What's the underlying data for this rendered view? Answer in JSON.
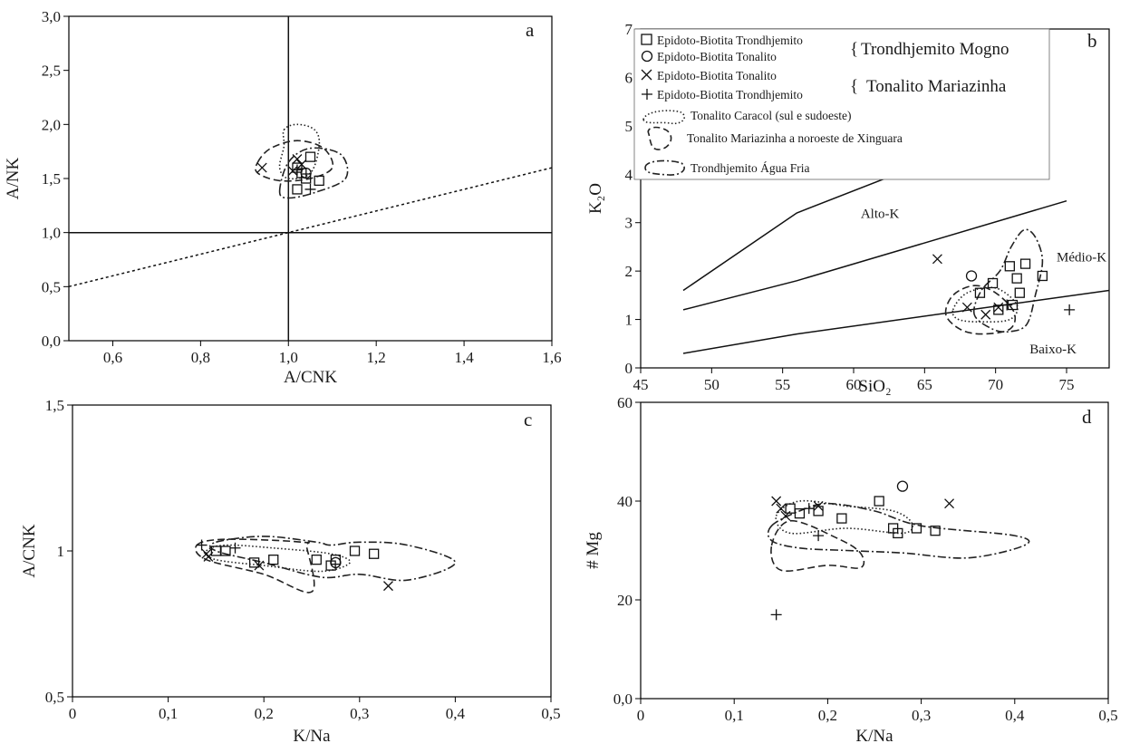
{
  "chart_data": [
    {
      "id": "a",
      "panel_label": "a",
      "type": "scatter",
      "xlabel": "A/CNK",
      "ylabel": "A/NK",
      "xlim": [
        0.5,
        1.6
      ],
      "ylim": [
        0.0,
        3.0
      ],
      "xticks": [
        "0,6",
        "0,8",
        "1,0",
        "1,2",
        "1,4",
        "1,6"
      ],
      "xtick_values": [
        0.6,
        0.8,
        1.0,
        1.2,
        1.4,
        1.6
      ],
      "yticks": [
        "0,0",
        "0,5",
        "1,0",
        "1,5",
        "2,0",
        "2,5",
        "3,0"
      ],
      "ytick_values": [
        0,
        0.5,
        1.0,
        1.5,
        2.0,
        2.5,
        3.0
      ],
      "reference_lines": [
        {
          "style": "solid",
          "points": [
            [
              1.0,
              0
            ],
            [
              1.0,
              3.0
            ]
          ]
        },
        {
          "style": "solid",
          "points": [
            [
              0.5,
              1.0
            ],
            [
              1.6,
              1.0
            ]
          ]
        },
        {
          "style": "dotted",
          "points": [
            [
              0.5,
              0.5
            ],
            [
              1.6,
              1.6
            ]
          ]
        }
      ],
      "series": [
        {
          "name": "Epidoto-Biotita Trondhjemito",
          "marker": "square",
          "points": [
            [
              1.02,
              1.4
            ],
            [
              1.04,
              1.5
            ],
            [
              1.05,
              1.7
            ],
            [
              1.03,
              1.55
            ],
            [
              1.07,
              1.48
            ],
            [
              1.02,
              1.6
            ]
          ]
        },
        {
          "name": "Epidoto-Biotita Tonalito",
          "marker": "circle",
          "points": [
            [
              1.04,
              1.55
            ]
          ]
        },
        {
          "name": "Epidoto-Biotita Tonalito",
          "marker": "x",
          "points": [
            [
              0.94,
              1.6
            ],
            [
              1.02,
              1.68
            ],
            [
              1.03,
              1.63
            ],
            [
              1.01,
              1.57
            ]
          ]
        },
        {
          "name": "Epidoto-Biotita Trondhjemito",
          "marker": "plus",
          "points": [
            [
              1.05,
              1.4
            ],
            [
              1.02,
              1.58
            ]
          ]
        }
      ],
      "fields": [
        {
          "style": "dotted",
          "points": [
            [
              0.99,
              1.95
            ],
            [
              1.02,
              2.0
            ],
            [
              1.06,
              1.95
            ],
            [
              1.07,
              1.8
            ],
            [
              1.05,
              1.55
            ],
            [
              1.0,
              1.5
            ],
            [
              0.98,
              1.6
            ],
            [
              0.99,
              1.8
            ]
          ]
        },
        {
          "style": "dashed",
          "points": [
            [
              0.93,
              1.65
            ],
            [
              0.96,
              1.78
            ],
            [
              1.02,
              1.85
            ],
            [
              1.08,
              1.78
            ],
            [
              1.1,
              1.6
            ],
            [
              1.05,
              1.5
            ],
            [
              0.98,
              1.48
            ],
            [
              0.93,
              1.55
            ]
          ]
        },
        {
          "style": "dashdot",
          "points": [
            [
              0.98,
              1.38
            ],
            [
              1.0,
              1.65
            ],
            [
              1.05,
              1.78
            ],
            [
              1.12,
              1.72
            ],
            [
              1.13,
              1.5
            ],
            [
              1.06,
              1.37
            ],
            [
              1.0,
              1.32
            ]
          ]
        }
      ]
    },
    {
      "id": "b",
      "panel_label": "b",
      "type": "scatter",
      "xlabel": "SiO₂",
      "ylabel": "K₂O",
      "xlim": [
        45,
        78
      ],
      "ylim": [
        0,
        7
      ],
      "xticks": [
        "45",
        "50",
        "55",
        "60",
        "65",
        "70",
        "75"
      ],
      "xtick_values": [
        45,
        50,
        55,
        60,
        65,
        70,
        75
      ],
      "yticks": [
        "0",
        "1",
        "2",
        "3",
        "4",
        "5",
        "6",
        "7"
      ],
      "ytick_values": [
        0,
        1,
        2,
        3,
        4,
        5,
        6,
        7
      ],
      "boundary_lines": [
        [
          [
            48,
            1.6
          ],
          [
            56,
            3.2
          ],
          [
            70,
            4.8
          ]
        ],
        [
          [
            48,
            1.2
          ],
          [
            56,
            1.8
          ],
          [
            75,
            3.45
          ]
        ],
        [
          [
            48,
            0.3
          ],
          [
            56,
            0.7
          ],
          [
            78,
            1.6
          ]
        ]
      ],
      "region_labels": [
        "Alto-K",
        "Médio-K",
        "Baixo-K"
      ],
      "series": [
        {
          "name": "Epidoto-Biotita Trondhjemito",
          "marker": "square",
          "points": [
            [
              68.9,
              1.55
            ],
            [
              69.8,
              1.75
            ],
            [
              70.2,
              1.2
            ],
            [
              71.0,
              2.1
            ],
            [
              72.1,
              2.15
            ],
            [
              71.5,
              1.85
            ],
            [
              71.7,
              1.55
            ],
            [
              71.2,
              1.3
            ],
            [
              73.3,
              1.9
            ]
          ]
        },
        {
          "name": "Epidoto-Biotita Tonalito",
          "marker": "circle",
          "points": [
            [
              68.3,
              1.9
            ]
          ]
        },
        {
          "name": "Epidoto-Biotita Tonalito",
          "marker": "x",
          "points": [
            [
              65.9,
              2.25
            ],
            [
              68.0,
              1.25
            ],
            [
              69.3,
              1.1
            ],
            [
              70.2,
              1.25
            ]
          ]
        },
        {
          "name": "Epidoto-Biotita Trondhjemito",
          "marker": "plus",
          "points": [
            [
              75.2,
              1.2
            ],
            [
              70.8,
              1.3
            ]
          ]
        }
      ],
      "fields": [
        {
          "style": "dotted",
          "points": [
            [
              67,
              1.2
            ],
            [
              68,
              1.55
            ],
            [
              70,
              1.65
            ],
            [
              71.5,
              1.3
            ],
            [
              71,
              1.0
            ],
            [
              69,
              0.95
            ],
            [
              67.4,
              1.0
            ]
          ]
        },
        {
          "style": "dashed",
          "points": [
            [
              66.5,
              1.1
            ],
            [
              67,
              1.5
            ],
            [
              68.5,
              1.7
            ],
            [
              70,
              1.55
            ],
            [
              71.3,
              1.15
            ],
            [
              71,
              0.8
            ],
            [
              69,
              0.7
            ],
            [
              67.5,
              0.8
            ]
          ]
        },
        {
          "style": "dashdot",
          "points": [
            [
              68.5,
              1.1
            ],
            [
              69,
              1.6
            ],
            [
              70.3,
              2.0
            ],
            [
              71.1,
              2.5
            ],
            [
              72.0,
              2.85
            ],
            [
              72.8,
              2.7
            ],
            [
              73.3,
              2.2
            ],
            [
              72.8,
              1.5
            ],
            [
              72.2,
              0.9
            ],
            [
              71,
              0.75
            ],
            [
              69.8,
              0.8
            ]
          ]
        }
      ],
      "legend": {
        "entries": [
          {
            "marker": "square",
            "label": "Epidoto-Biotita Trondhjemito"
          },
          {
            "marker": "circle",
            "label": "Epidoto-Biotita Tonalito"
          },
          {
            "marker": "x",
            "label": "Epidoto-Biotita Tonalito"
          },
          {
            "marker": "plus",
            "label": "Epidoto-Biotita Trondhjemito"
          },
          {
            "marker": "dotted-field",
            "label": "Tonalito Caracol (sul e sudoeste)"
          },
          {
            "marker": "dashed-field",
            "label": "Tonalito Mariazinha a noroeste de Xinguara"
          },
          {
            "marker": "dashdot-field",
            "label": "Trondhjemito Água Fria"
          }
        ],
        "groups": [
          "Trondhjemito Mogno",
          "Tonalito Mariazinha"
        ],
        "position": "top-left"
      }
    },
    {
      "id": "c",
      "panel_label": "c",
      "type": "scatter",
      "xlabel": "K/Na",
      "ylabel": "A/CNK",
      "xlim": [
        0,
        0.5
      ],
      "ylim": [
        0.5,
        1.5
      ],
      "xticks": [
        "0",
        "0,1",
        "0,2",
        "0,3",
        "0,4",
        "0,5"
      ],
      "xtick_values": [
        0,
        0.1,
        0.2,
        0.3,
        0.4,
        0.5
      ],
      "yticks": [
        "0,5",
        "1",
        "1,5"
      ],
      "ytick_values": [
        0.5,
        1.0,
        1.5
      ],
      "series": [
        {
          "name": "Epidoto-Biotita Trondhjemito",
          "marker": "square",
          "points": [
            [
              0.15,
              1.0
            ],
            [
              0.16,
              1.0
            ],
            [
              0.19,
              0.96
            ],
            [
              0.21,
              0.97
            ],
            [
              0.255,
              0.97
            ],
            [
              0.27,
              0.95
            ],
            [
              0.275,
              0.97
            ],
            [
              0.295,
              1.0
            ],
            [
              0.315,
              0.99
            ]
          ]
        },
        {
          "name": "Epidoto-Biotita Tonalito",
          "marker": "circle",
          "points": [
            [
              0.275,
              0.96
            ]
          ]
        },
        {
          "name": "Epidoto-Biotita Tonalito",
          "marker": "x",
          "points": [
            [
              0.14,
              0.99
            ],
            [
              0.142,
              0.98
            ],
            [
              0.195,
              0.95
            ],
            [
              0.33,
              0.88
            ]
          ]
        },
        {
          "name": "Epidoto-Biotita Trondhjemito",
          "marker": "plus",
          "points": [
            [
              0.17,
              1.01
            ],
            [
              0.135,
              1.02
            ]
          ]
        }
      ],
      "fields": [
        {
          "style": "dotted",
          "points": [
            [
              0.14,
              1.0
            ],
            [
              0.16,
              1.02
            ],
            [
              0.21,
              1.01
            ],
            [
              0.27,
              0.99
            ],
            [
              0.29,
              0.96
            ],
            [
              0.26,
              0.93
            ],
            [
              0.2,
              0.95
            ],
            [
              0.15,
              0.97
            ]
          ]
        },
        {
          "style": "dashed",
          "points": [
            [
              0.13,
              1.02
            ],
            [
              0.16,
              1.04
            ],
            [
              0.24,
              1.03
            ],
            [
              0.245,
              1.01
            ],
            [
              0.25,
              0.86
            ],
            [
              0.2,
              0.92
            ],
            [
              0.14,
              0.97
            ]
          ]
        },
        {
          "style": "dashdot",
          "points": [
            [
              0.15,
              1.03
            ],
            [
              0.2,
              1.05
            ],
            [
              0.255,
              1.03
            ],
            [
              0.27,
              1.02
            ],
            [
              0.3,
              1.03
            ],
            [
              0.35,
              1.02
            ],
            [
              0.4,
              0.96
            ],
            [
              0.35,
              0.9
            ],
            [
              0.3,
              0.92
            ],
            [
              0.26,
              0.91
            ],
            [
              0.2,
              0.96
            ],
            [
              0.15,
              1.0
            ]
          ]
        }
      ]
    },
    {
      "id": "d",
      "panel_label": "d",
      "type": "scatter",
      "xlabel": "K/Na",
      "ylabel": "# Mg",
      "xlim": [
        0,
        0.5
      ],
      "ylim": [
        0,
        60
      ],
      "xticks": [
        "0",
        "0,1",
        "0,2",
        "0,3",
        "0,4",
        "0,5"
      ],
      "xtick_values": [
        0,
        0.1,
        0.2,
        0.3,
        0.4,
        0.5
      ],
      "yticks": [
        "0,0",
        "20",
        "40",
        "60"
      ],
      "ytick_values": [
        0,
        20,
        40,
        60
      ],
      "series": [
        {
          "name": "Epidoto-Biotita Trondhjemito",
          "marker": "square",
          "points": [
            [
              0.16,
              38.5
            ],
            [
              0.17,
              37.5
            ],
            [
              0.19,
              38
            ],
            [
              0.215,
              36.5
            ],
            [
              0.255,
              40
            ],
            [
              0.27,
              34.5
            ],
            [
              0.275,
              33.5
            ],
            [
              0.295,
              34.5
            ],
            [
              0.315,
              34
            ]
          ]
        },
        {
          "name": "Epidoto-Biotita Tonalito",
          "marker": "circle",
          "points": [
            [
              0.28,
              43
            ]
          ]
        },
        {
          "name": "Epidoto-Biotita Tonalito",
          "marker": "x",
          "points": [
            [
              0.145,
              40
            ],
            [
              0.15,
              38.5
            ],
            [
              0.155,
              37
            ],
            [
              0.19,
              39
            ],
            [
              0.33,
              39.5
            ]
          ]
        },
        {
          "name": "Epidoto-Biotita Trondhjemito",
          "marker": "plus",
          "points": [
            [
              0.145,
              17
            ],
            [
              0.19,
              33
            ],
            [
              0.18,
              38.5
            ]
          ]
        }
      ],
      "fields": [
        {
          "style": "dotted",
          "points": [
            [
              0.145,
              37
            ],
            [
              0.17,
              40
            ],
            [
              0.22,
              39
            ],
            [
              0.27,
              38
            ],
            [
              0.29,
              35.5
            ],
            [
              0.28,
              33.5
            ],
            [
              0.22,
              34.5
            ],
            [
              0.16,
              33.5
            ]
          ]
        },
        {
          "style": "dashed",
          "points": [
            [
              0.14,
              31
            ],
            [
              0.16,
              36
            ],
            [
              0.21,
              32.5
            ],
            [
              0.235,
              29.5
            ],
            [
              0.235,
              26.5
            ],
            [
              0.2,
              27
            ],
            [
              0.15,
              26
            ]
          ]
        },
        {
          "style": "dashdot",
          "points": [
            [
              0.14,
              35
            ],
            [
              0.17,
              38
            ],
            [
              0.2,
              39.5
            ],
            [
              0.25,
              38
            ],
            [
              0.3,
              35
            ],
            [
              0.4,
              33
            ],
            [
              0.41,
              31
            ],
            [
              0.35,
              28.5
            ],
            [
              0.28,
              29.5
            ],
            [
              0.22,
              30
            ],
            [
              0.17,
              30.5
            ],
            [
              0.14,
              32
            ]
          ]
        }
      ]
    }
  ],
  "legend_text": {
    "entry1": "Epidoto-Biotita Trondhjemito",
    "entry2": "Epidoto-Biotita Tonalito",
    "entry3": "Epidoto-Biotita Tonalito",
    "entry4": "Epidoto-Biotita Trondhjemito",
    "entry5": "Tonalito Caracol (sul e sudoeste)",
    "entry6": "Tonalito Mariazinha a noroeste de Xinguara",
    "entry7": "Trondhjemito Água Fria",
    "group1": "Trondhjemito Mogno",
    "group2": "Tonalito Mariazinha"
  }
}
